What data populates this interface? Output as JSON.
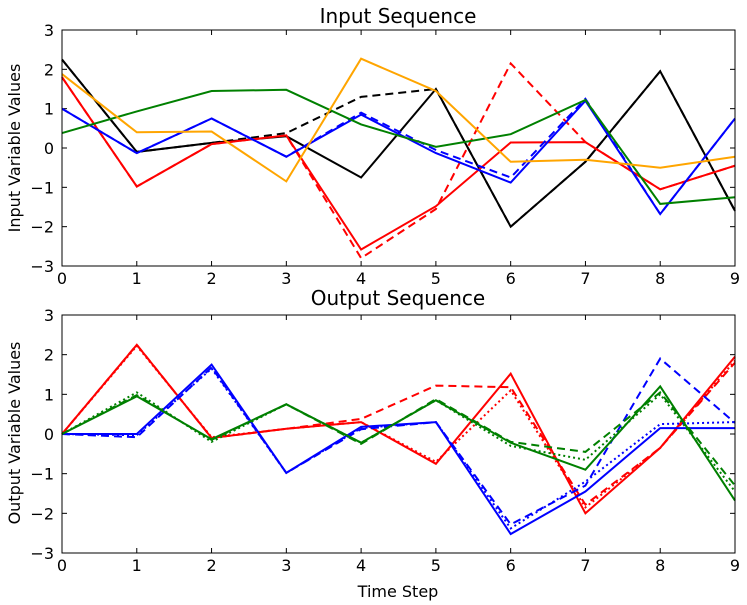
{
  "colors": {
    "black": "#000000",
    "red": "#ff0000",
    "blue": "#0000ff",
    "green": "#008000",
    "orange": "#ffa500"
  },
  "chart_data": [
    {
      "type": "line",
      "title": "Input Sequence",
      "xlabel": "",
      "ylabel": "Input Variable Values",
      "xlim": [
        0,
        9
      ],
      "ylim": [
        -3,
        3
      ],
      "xticks": [
        "0",
        "1",
        "2",
        "3",
        "4",
        "5",
        "6",
        "7",
        "8",
        "9"
      ],
      "yticks": [
        "3",
        "2",
        "1",
        "0",
        "−1",
        "−2",
        "−3"
      ],
      "x": [
        0,
        1,
        2,
        3,
        4,
        5,
        6,
        7,
        8,
        9
      ],
      "series": [
        {
          "name": "black-solid",
          "color": "black",
          "style": "solid",
          "values": [
            2.25,
            -0.1,
            0.13,
            0.3,
            -0.75,
            1.5,
            -2.0,
            -0.35,
            1.95,
            -1.6
          ]
        },
        {
          "name": "black-dashed",
          "color": "black",
          "style": "dashed",
          "values": [
            2.25,
            -0.1,
            0.13,
            0.38,
            1.3,
            1.5,
            -2.0,
            -0.35,
            1.95,
            -1.6
          ]
        },
        {
          "name": "red-solid",
          "color": "red",
          "style": "solid",
          "values": [
            1.8,
            -0.98,
            0.1,
            0.32,
            -2.58,
            -1.48,
            0.14,
            0.15,
            -1.05,
            -0.45
          ]
        },
        {
          "name": "red-dashed",
          "color": "red",
          "style": "dashed",
          "values": [
            1.8,
            -0.98,
            0.1,
            0.32,
            -2.8,
            -1.55,
            2.15,
            0.15,
            -1.05,
            -0.45
          ]
        },
        {
          "name": "blue-solid",
          "color": "blue",
          "style": "solid",
          "values": [
            1.0,
            -0.13,
            0.75,
            -0.22,
            0.85,
            -0.13,
            -0.88,
            1.2,
            -1.68,
            0.75
          ]
        },
        {
          "name": "blue-dashed",
          "color": "blue",
          "style": "dashed",
          "values": [
            1.0,
            -0.13,
            0.75,
            -0.22,
            0.9,
            -0.05,
            -0.75,
            1.25,
            -1.68,
            0.75
          ]
        },
        {
          "name": "green-solid",
          "color": "green",
          "style": "solid",
          "values": [
            0.38,
            0.93,
            1.45,
            1.48,
            0.6,
            0.03,
            0.35,
            1.22,
            -1.42,
            -1.25
          ]
        },
        {
          "name": "orange-solid",
          "color": "orange",
          "style": "solid",
          "values": [
            1.88,
            0.4,
            0.42,
            -0.85,
            2.27,
            1.45,
            -0.35,
            -0.3,
            -0.5,
            -0.22
          ]
        }
      ]
    },
    {
      "type": "line",
      "title": "Output Sequence",
      "xlabel": "Time Step",
      "ylabel": "Output Variable Values",
      "xlim": [
        0,
        9
      ],
      "ylim": [
        -3,
        3
      ],
      "xticks": [
        "0",
        "1",
        "2",
        "3",
        "4",
        "5",
        "6",
        "7",
        "8",
        "9"
      ],
      "yticks": [
        "3",
        "2",
        "1",
        "0",
        "−1",
        "−2",
        "−3"
      ],
      "x": [
        0,
        1,
        2,
        3,
        4,
        5,
        6,
        7,
        8,
        9
      ],
      "series": [
        {
          "name": "red-solid",
          "color": "red",
          "style": "solid",
          "values": [
            0.0,
            2.25,
            -0.1,
            0.13,
            0.3,
            -0.75,
            1.52,
            -2.0,
            -0.35,
            1.95
          ]
        },
        {
          "name": "red-dashed",
          "color": "red",
          "style": "dashed",
          "values": [
            0.0,
            2.25,
            -0.1,
            0.13,
            0.38,
            1.22,
            1.18,
            -1.78,
            -0.35,
            1.8
          ]
        },
        {
          "name": "red-dotted",
          "color": "red",
          "style": "dotted",
          "values": [
            0.0,
            2.22,
            -0.08,
            0.13,
            0.3,
            -0.7,
            1.1,
            -1.85,
            -0.35,
            1.85
          ]
        },
        {
          "name": "blue-solid",
          "color": "blue",
          "style": "solid",
          "values": [
            0.0,
            0.0,
            1.75,
            -0.98,
            0.18,
            0.3,
            -2.52,
            -1.45,
            0.15,
            0.15
          ]
        },
        {
          "name": "blue-dashed",
          "color": "blue",
          "style": "dashed",
          "values": [
            0.0,
            -0.08,
            1.68,
            -0.98,
            0.12,
            0.3,
            -2.28,
            -1.3,
            1.9,
            0.28
          ]
        },
        {
          "name": "blue-dotted",
          "color": "blue",
          "style": "dotted",
          "values": [
            0.0,
            -0.03,
            1.65,
            -0.98,
            0.15,
            0.3,
            -2.38,
            -1.2,
            0.25,
            0.3
          ]
        },
        {
          "name": "green-solid",
          "color": "green",
          "style": "solid",
          "values": [
            0.0,
            0.95,
            -0.13,
            0.75,
            -0.22,
            0.85,
            -0.22,
            -0.9,
            1.2,
            -1.68
          ]
        },
        {
          "name": "green-dashed",
          "color": "green",
          "style": "dashed",
          "values": [
            0.0,
            0.98,
            -0.15,
            0.75,
            -0.25,
            0.88,
            -0.2,
            -0.45,
            1.05,
            -1.3
          ]
        },
        {
          "name": "green-dotted",
          "color": "green",
          "style": "dotted",
          "values": [
            0.0,
            1.05,
            -0.2,
            0.75,
            -0.22,
            0.85,
            -0.3,
            -0.65,
            1.0,
            -1.45
          ]
        }
      ]
    }
  ]
}
